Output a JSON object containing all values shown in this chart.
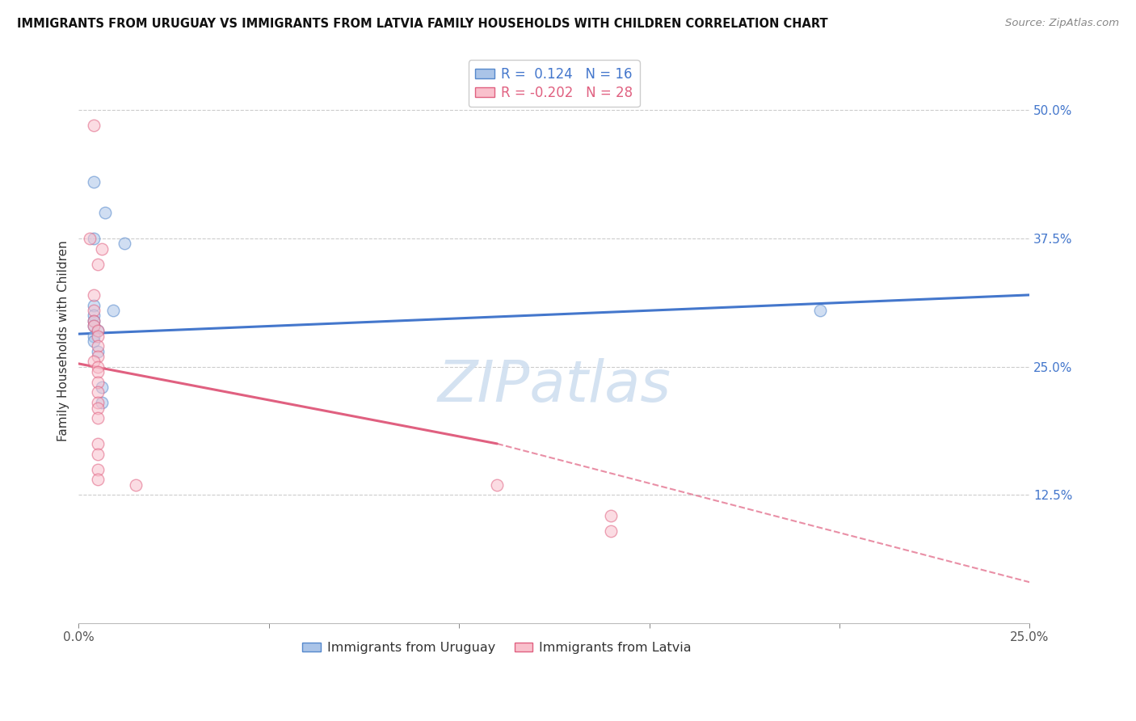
{
  "title": "IMMIGRANTS FROM URUGUAY VS IMMIGRANTS FROM LATVIA FAMILY HOUSEHOLDS WITH CHILDREN CORRELATION CHART",
  "source": "Source: ZipAtlas.com",
  "ylabel": "Family Households with Children",
  "xlim": [
    0.0,
    0.25
  ],
  "ylim": [
    0.0,
    0.55
  ],
  "x_ticks": [
    0.0,
    0.05,
    0.1,
    0.15,
    0.2,
    0.25
  ],
  "x_ticklabels": [
    "0.0%",
    "",
    "",
    "",
    "",
    "25.0%"
  ],
  "y_ticks_right": [
    0.125,
    0.25,
    0.375,
    0.5
  ],
  "y_ticklabels_right": [
    "12.5%",
    "25.0%",
    "37.5%",
    "50.0%"
  ],
  "legend_entries": [
    {
      "label": "R =  0.124   N = 16",
      "facecolor": "#aac4e8",
      "edgecolor": "#5588cc",
      "line_color": "#4477cc"
    },
    {
      "label": "R = -0.202   N = 28",
      "facecolor": "#f9c0cc",
      "edgecolor": "#e06080",
      "line_color": "#e06080"
    }
  ],
  "uruguay_scatter": [
    [
      0.004,
      0.43
    ],
    [
      0.007,
      0.4
    ],
    [
      0.004,
      0.375
    ],
    [
      0.012,
      0.37
    ],
    [
      0.004,
      0.31
    ],
    [
      0.009,
      0.305
    ],
    [
      0.004,
      0.3
    ],
    [
      0.004,
      0.295
    ],
    [
      0.004,
      0.29
    ],
    [
      0.005,
      0.285
    ],
    [
      0.004,
      0.28
    ],
    [
      0.004,
      0.275
    ],
    [
      0.005,
      0.265
    ],
    [
      0.006,
      0.23
    ],
    [
      0.006,
      0.215
    ],
    [
      0.195,
      0.305
    ]
  ],
  "latvia_scatter": [
    [
      0.004,
      0.485
    ],
    [
      0.003,
      0.375
    ],
    [
      0.006,
      0.365
    ],
    [
      0.005,
      0.35
    ],
    [
      0.004,
      0.32
    ],
    [
      0.004,
      0.305
    ],
    [
      0.004,
      0.295
    ],
    [
      0.004,
      0.29
    ],
    [
      0.005,
      0.285
    ],
    [
      0.005,
      0.28
    ],
    [
      0.005,
      0.27
    ],
    [
      0.005,
      0.26
    ],
    [
      0.004,
      0.255
    ],
    [
      0.005,
      0.25
    ],
    [
      0.005,
      0.245
    ],
    [
      0.005,
      0.235
    ],
    [
      0.005,
      0.225
    ],
    [
      0.005,
      0.215
    ],
    [
      0.005,
      0.21
    ],
    [
      0.005,
      0.2
    ],
    [
      0.005,
      0.175
    ],
    [
      0.005,
      0.165
    ],
    [
      0.005,
      0.15
    ],
    [
      0.005,
      0.14
    ],
    [
      0.015,
      0.135
    ],
    [
      0.11,
      0.135
    ],
    [
      0.14,
      0.105
    ],
    [
      0.14,
      0.09
    ]
  ],
  "uruguay_line": [
    [
      0.0,
      0.282
    ],
    [
      0.25,
      0.32
    ]
  ],
  "latvia_line_solid": [
    [
      0.0,
      0.253
    ],
    [
      0.11,
      0.175
    ]
  ],
  "latvia_line_dashed": [
    [
      0.11,
      0.175
    ],
    [
      0.25,
      0.04
    ]
  ],
  "background_color": "#ffffff",
  "grid_color": "#cccccc",
  "scatter_size": 110,
  "scatter_alpha": 0.55,
  "watermark": "ZIPatlas",
  "watermark_color": "#d0dff0"
}
